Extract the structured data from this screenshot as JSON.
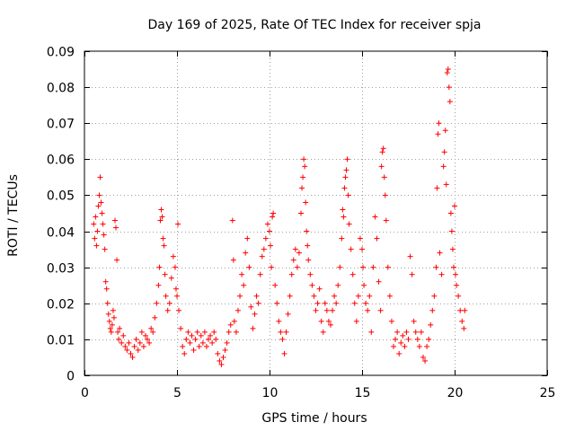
{
  "chart_data": {
    "type": "scatter",
    "title": "Day 169 of 2025, Rate Of TEC Index for receiver spja",
    "xlabel": "GPS time / hours",
    "ylabel": "ROTI / TECUs",
    "xlim": [
      0,
      25
    ],
    "ylim": [
      0,
      0.09
    ],
    "x_ticks": [
      0,
      5,
      10,
      15,
      20,
      25
    ],
    "x_tick_labels": [
      "0",
      "5",
      "10",
      "15",
      "20",
      "25"
    ],
    "y_ticks": [
      0,
      0.01,
      0.02,
      0.03,
      0.04,
      0.05,
      0.06,
      0.07,
      0.08,
      0.09
    ],
    "y_tick_labels": [
      "0",
      "0.01",
      "0.02",
      "0.03",
      "0.04",
      "0.05",
      "0.06",
      "0.07",
      "0.08",
      "0.09"
    ],
    "grid": true,
    "marker": "+",
    "series": [
      {
        "name": "ROTI",
        "color": "#ff0000",
        "points": [
          [
            0.5,
            0.042
          ],
          [
            0.55,
            0.038
          ],
          [
            0.6,
            0.044
          ],
          [
            0.65,
            0.036
          ],
          [
            0.7,
            0.04
          ],
          [
            0.75,
            0.047
          ],
          [
            0.8,
            0.05
          ],
          [
            0.85,
            0.055
          ],
          [
            0.9,
            0.048
          ],
          [
            0.95,
            0.045
          ],
          [
            1.0,
            0.042
          ],
          [
            1.05,
            0.039
          ],
          [
            1.1,
            0.035
          ],
          [
            1.15,
            0.026
          ],
          [
            1.2,
            0.024
          ],
          [
            1.25,
            0.02
          ],
          [
            1.3,
            0.017
          ],
          [
            1.35,
            0.015
          ],
          [
            1.4,
            0.013
          ],
          [
            1.45,
            0.012
          ],
          [
            1.5,
            0.014
          ],
          [
            1.55,
            0.018
          ],
          [
            1.6,
            0.016
          ],
          [
            1.65,
            0.043
          ],
          [
            1.7,
            0.041
          ],
          [
            1.75,
            0.032
          ],
          [
            1.8,
            0.012
          ],
          [
            1.85,
            0.01
          ],
          [
            1.9,
            0.013
          ],
          [
            2.0,
            0.009
          ],
          [
            2.1,
            0.011
          ],
          [
            2.2,
            0.008
          ],
          [
            2.3,
            0.007
          ],
          [
            2.4,
            0.009
          ],
          [
            2.5,
            0.006
          ],
          [
            2.6,
            0.005
          ],
          [
            2.7,
            0.008
          ],
          [
            2.8,
            0.01
          ],
          [
            2.9,
            0.007
          ],
          [
            3.0,
            0.009
          ],
          [
            3.1,
            0.012
          ],
          [
            3.2,
            0.008
          ],
          [
            3.3,
            0.011
          ],
          [
            3.4,
            0.01
          ],
          [
            3.5,
            0.009
          ],
          [
            3.6,
            0.013
          ],
          [
            3.7,
            0.012
          ],
          [
            3.8,
            0.016
          ],
          [
            3.9,
            0.02
          ],
          [
            4.0,
            0.025
          ],
          [
            4.05,
            0.03
          ],
          [
            4.1,
            0.043
          ],
          [
            4.15,
            0.046
          ],
          [
            4.2,
            0.044
          ],
          [
            4.25,
            0.038
          ],
          [
            4.3,
            0.036
          ],
          [
            4.35,
            0.028
          ],
          [
            4.4,
            0.022
          ],
          [
            4.5,
            0.018
          ],
          [
            4.6,
            0.02
          ],
          [
            4.7,
            0.027
          ],
          [
            4.8,
            0.033
          ],
          [
            4.9,
            0.03
          ],
          [
            4.95,
            0.024
          ],
          [
            5.0,
            0.022
          ],
          [
            5.05,
            0.042
          ],
          [
            5.1,
            0.018
          ],
          [
            5.2,
            0.013
          ],
          [
            5.3,
            0.008
          ],
          [
            5.4,
            0.006
          ],
          [
            5.5,
            0.01
          ],
          [
            5.6,
            0.012
          ],
          [
            5.7,
            0.009
          ],
          [
            5.8,
            0.011
          ],
          [
            5.9,
            0.007
          ],
          [
            6.0,
            0.01
          ],
          [
            6.1,
            0.012
          ],
          [
            6.2,
            0.008
          ],
          [
            6.3,
            0.011
          ],
          [
            6.4,
            0.009
          ],
          [
            6.5,
            0.012
          ],
          [
            6.6,
            0.008
          ],
          [
            6.7,
            0.01
          ],
          [
            6.8,
            0.011
          ],
          [
            6.9,
            0.009
          ],
          [
            7.0,
            0.012
          ],
          [
            7.1,
            0.01
          ],
          [
            7.2,
            0.006
          ],
          [
            7.3,
            0.004
          ],
          [
            7.4,
            0.003
          ],
          [
            7.5,
            0.005
          ],
          [
            7.6,
            0.007
          ],
          [
            7.7,
            0.009
          ],
          [
            7.8,
            0.012
          ],
          [
            7.9,
            0.014
          ],
          [
            8.0,
            0.043
          ],
          [
            8.05,
            0.032
          ],
          [
            8.1,
            0.015
          ],
          [
            8.2,
            0.012
          ],
          [
            8.3,
            0.018
          ],
          [
            8.4,
            0.022
          ],
          [
            8.5,
            0.028
          ],
          [
            8.6,
            0.025
          ],
          [
            8.7,
            0.034
          ],
          [
            8.8,
            0.038
          ],
          [
            8.9,
            0.03
          ],
          [
            9.0,
            0.019
          ],
          [
            9.1,
            0.013
          ],
          [
            9.2,
            0.017
          ],
          [
            9.3,
            0.022
          ],
          [
            9.4,
            0.02
          ],
          [
            9.5,
            0.028
          ],
          [
            9.6,
            0.033
          ],
          [
            9.7,
            0.035
          ],
          [
            9.8,
            0.038
          ],
          [
            9.9,
            0.042
          ],
          [
            10.0,
            0.04
          ],
          [
            10.05,
            0.036
          ],
          [
            10.1,
            0.03
          ],
          [
            10.15,
            0.044
          ],
          [
            10.2,
            0.045
          ],
          [
            10.3,
            0.025
          ],
          [
            10.4,
            0.02
          ],
          [
            10.5,
            0.015
          ],
          [
            10.6,
            0.012
          ],
          [
            10.7,
            0.01
          ],
          [
            10.8,
            0.006
          ],
          [
            10.9,
            0.012
          ],
          [
            11.0,
            0.017
          ],
          [
            11.1,
            0.022
          ],
          [
            11.2,
            0.028
          ],
          [
            11.3,
            0.032
          ],
          [
            11.4,
            0.035
          ],
          [
            11.5,
            0.03
          ],
          [
            11.6,
            0.034
          ],
          [
            11.7,
            0.045
          ],
          [
            11.75,
            0.052
          ],
          [
            11.8,
            0.055
          ],
          [
            11.85,
            0.06
          ],
          [
            11.9,
            0.058
          ],
          [
            11.95,
            0.048
          ],
          [
            12.0,
            0.04
          ],
          [
            12.05,
            0.036
          ],
          [
            12.1,
            0.032
          ],
          [
            12.2,
            0.028
          ],
          [
            12.3,
            0.025
          ],
          [
            12.4,
            0.022
          ],
          [
            12.5,
            0.018
          ],
          [
            12.6,
            0.02
          ],
          [
            12.7,
            0.024
          ],
          [
            12.8,
            0.015
          ],
          [
            12.9,
            0.012
          ],
          [
            13.0,
            0.02
          ],
          [
            13.1,
            0.018
          ],
          [
            13.2,
            0.015
          ],
          [
            13.3,
            0.014
          ],
          [
            13.4,
            0.018
          ],
          [
            13.5,
            0.022
          ],
          [
            13.6,
            0.02
          ],
          [
            13.7,
            0.025
          ],
          [
            13.8,
            0.03
          ],
          [
            13.9,
            0.038
          ],
          [
            13.95,
            0.046
          ],
          [
            14.0,
            0.044
          ],
          [
            14.05,
            0.052
          ],
          [
            14.1,
            0.055
          ],
          [
            14.15,
            0.057
          ],
          [
            14.2,
            0.06
          ],
          [
            14.25,
            0.05
          ],
          [
            14.3,
            0.042
          ],
          [
            14.4,
            0.035
          ],
          [
            14.5,
            0.028
          ],
          [
            14.6,
            0.02
          ],
          [
            14.7,
            0.015
          ],
          [
            14.8,
            0.022
          ],
          [
            14.9,
            0.038
          ],
          [
            15.0,
            0.035
          ],
          [
            15.05,
            0.03
          ],
          [
            15.1,
            0.025
          ],
          [
            15.2,
            0.02
          ],
          [
            15.3,
            0.018
          ],
          [
            15.4,
            0.022
          ],
          [
            15.5,
            0.012
          ],
          [
            15.6,
            0.03
          ],
          [
            15.7,
            0.044
          ],
          [
            15.8,
            0.038
          ],
          [
            15.9,
            0.026
          ],
          [
            16.0,
            0.018
          ],
          [
            16.05,
            0.058
          ],
          [
            16.1,
            0.062
          ],
          [
            16.15,
            0.063
          ],
          [
            16.2,
            0.055
          ],
          [
            16.25,
            0.05
          ],
          [
            16.3,
            0.043
          ],
          [
            16.4,
            0.03
          ],
          [
            16.5,
            0.022
          ],
          [
            16.6,
            0.015
          ],
          [
            16.7,
            0.008
          ],
          [
            16.8,
            0.01
          ],
          [
            16.9,
            0.012
          ],
          [
            17.0,
            0.006
          ],
          [
            17.1,
            0.009
          ],
          [
            17.2,
            0.011
          ],
          [
            17.3,
            0.008
          ],
          [
            17.4,
            0.012
          ],
          [
            17.5,
            0.01
          ],
          [
            17.6,
            0.033
          ],
          [
            17.7,
            0.028
          ],
          [
            17.8,
            0.015
          ],
          [
            17.9,
            0.012
          ],
          [
            18.0,
            0.01
          ],
          [
            18.1,
            0.008
          ],
          [
            18.2,
            0.012
          ],
          [
            18.3,
            0.005
          ],
          [
            18.4,
            0.004
          ],
          [
            18.5,
            0.008
          ],
          [
            18.6,
            0.01
          ],
          [
            18.7,
            0.014
          ],
          [
            18.8,
            0.018
          ],
          [
            18.9,
            0.022
          ],
          [
            19.0,
            0.03
          ],
          [
            19.05,
            0.052
          ],
          [
            19.1,
            0.067
          ],
          [
            19.15,
            0.07
          ],
          [
            19.2,
            0.034
          ],
          [
            19.3,
            0.028
          ],
          [
            19.4,
            0.058
          ],
          [
            19.45,
            0.062
          ],
          [
            19.5,
            0.068
          ],
          [
            19.55,
            0.053
          ],
          [
            19.6,
            0.084
          ],
          [
            19.65,
            0.085
          ],
          [
            19.7,
            0.08
          ],
          [
            19.75,
            0.076
          ],
          [
            19.8,
            0.045
          ],
          [
            19.85,
            0.04
          ],
          [
            19.9,
            0.035
          ],
          [
            19.95,
            0.03
          ],
          [
            20.0,
            0.047
          ],
          [
            20.05,
            0.028
          ],
          [
            20.1,
            0.025
          ],
          [
            20.2,
            0.022
          ],
          [
            20.3,
            0.018
          ],
          [
            20.4,
            0.015
          ],
          [
            20.5,
            0.013
          ],
          [
            20.55,
            0.018
          ]
        ]
      }
    ]
  }
}
